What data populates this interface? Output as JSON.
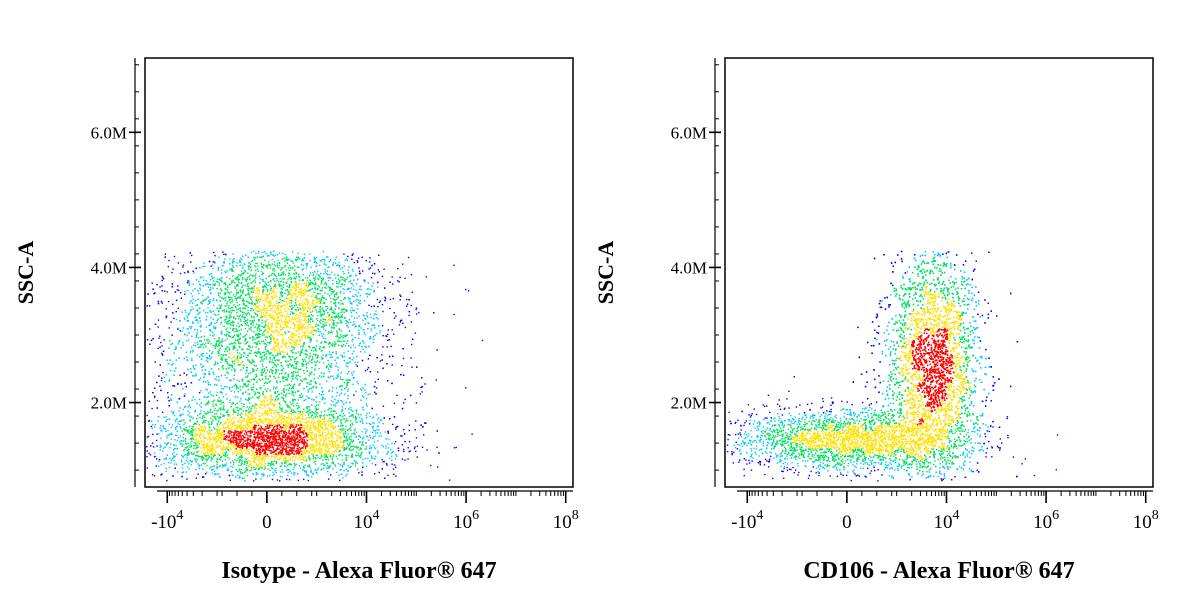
{
  "chart_data": [
    {
      "type": "scatter",
      "subtype": "flow-cytometry-density-dot-plot",
      "xlabel": "Isotype - Alexa Fluor® 647",
      "ylabel": "SSC-A",
      "x_scale": "biexponential",
      "ylim": [
        0.75,
        7.1
      ],
      "y_unit": "M",
      "y_ticks": [
        {
          "value": 2.0,
          "label": "2.0M"
        },
        {
          "value": 4.0,
          "label": "4.0M"
        },
        {
          "value": 6.0,
          "label": "6.0M"
        }
      ],
      "x_ticks": [
        {
          "value": -10000,
          "label": "-10",
          "exp": "4"
        },
        {
          "value": 0,
          "label": "0",
          "exp": ""
        },
        {
          "value": 10000,
          "label": "10",
          "exp": "4"
        },
        {
          "value": 1000000,
          "label": "10",
          "exp": "6"
        },
        {
          "value": 100000000,
          "label": "10",
          "exp": "8"
        }
      ],
      "grid": false,
      "populations": [
        {
          "x_center": 0,
          "x_spread": 1400,
          "y_center": 1.45,
          "y_spread": 0.25,
          "weight": 0.34
        },
        {
          "x_center": 0,
          "x_spread": 1600,
          "y_center": 2.6,
          "y_spread": 0.9,
          "weight": 0.46
        },
        {
          "x_center": 300,
          "x_spread": 1900,
          "y_center": 3.5,
          "y_spread": 0.45,
          "weight": 0.2
        }
      ],
      "y_range_of_events": [
        0.85,
        4.25
      ]
    },
    {
      "type": "scatter",
      "subtype": "flow-cytometry-density-dot-plot",
      "xlabel": "CD106 - Alexa Fluor® 647",
      "ylabel": "SSC-A",
      "x_scale": "biexponential",
      "ylim": [
        0.75,
        7.1
      ],
      "y_unit": "M",
      "y_ticks": [
        {
          "value": 2.0,
          "label": "2.0M"
        },
        {
          "value": 4.0,
          "label": "4.0M"
        },
        {
          "value": 6.0,
          "label": "6.0M"
        }
      ],
      "x_ticks": [
        {
          "value": -10000,
          "label": "-10",
          "exp": "4"
        },
        {
          "value": 0,
          "label": "0",
          "exp": ""
        },
        {
          "value": 10000,
          "label": "10",
          "exp": "4"
        },
        {
          "value": 1000000,
          "label": "10",
          "exp": "6"
        },
        {
          "value": 100000000,
          "label": "10",
          "exp": "8"
        }
      ],
      "grid": false,
      "populations": [
        {
          "x_center": 0,
          "x_spread": 1500,
          "y_center": 1.45,
          "y_spread": 0.22,
          "weight": 0.3
        },
        {
          "x_center": 5000,
          "x_spread": 10000,
          "y_center": 2.6,
          "y_spread": 0.85,
          "weight": 0.7
        }
      ],
      "y_range_of_events": [
        0.85,
        4.25
      ]
    }
  ],
  "colors": {
    "low_density": "#0000ff",
    "mid_low_density": "#00c8ff",
    "mid_density": "#00e060",
    "mid_high_density": "#ffe000",
    "high_density": "#ff0000",
    "axis": "#000000"
  }
}
